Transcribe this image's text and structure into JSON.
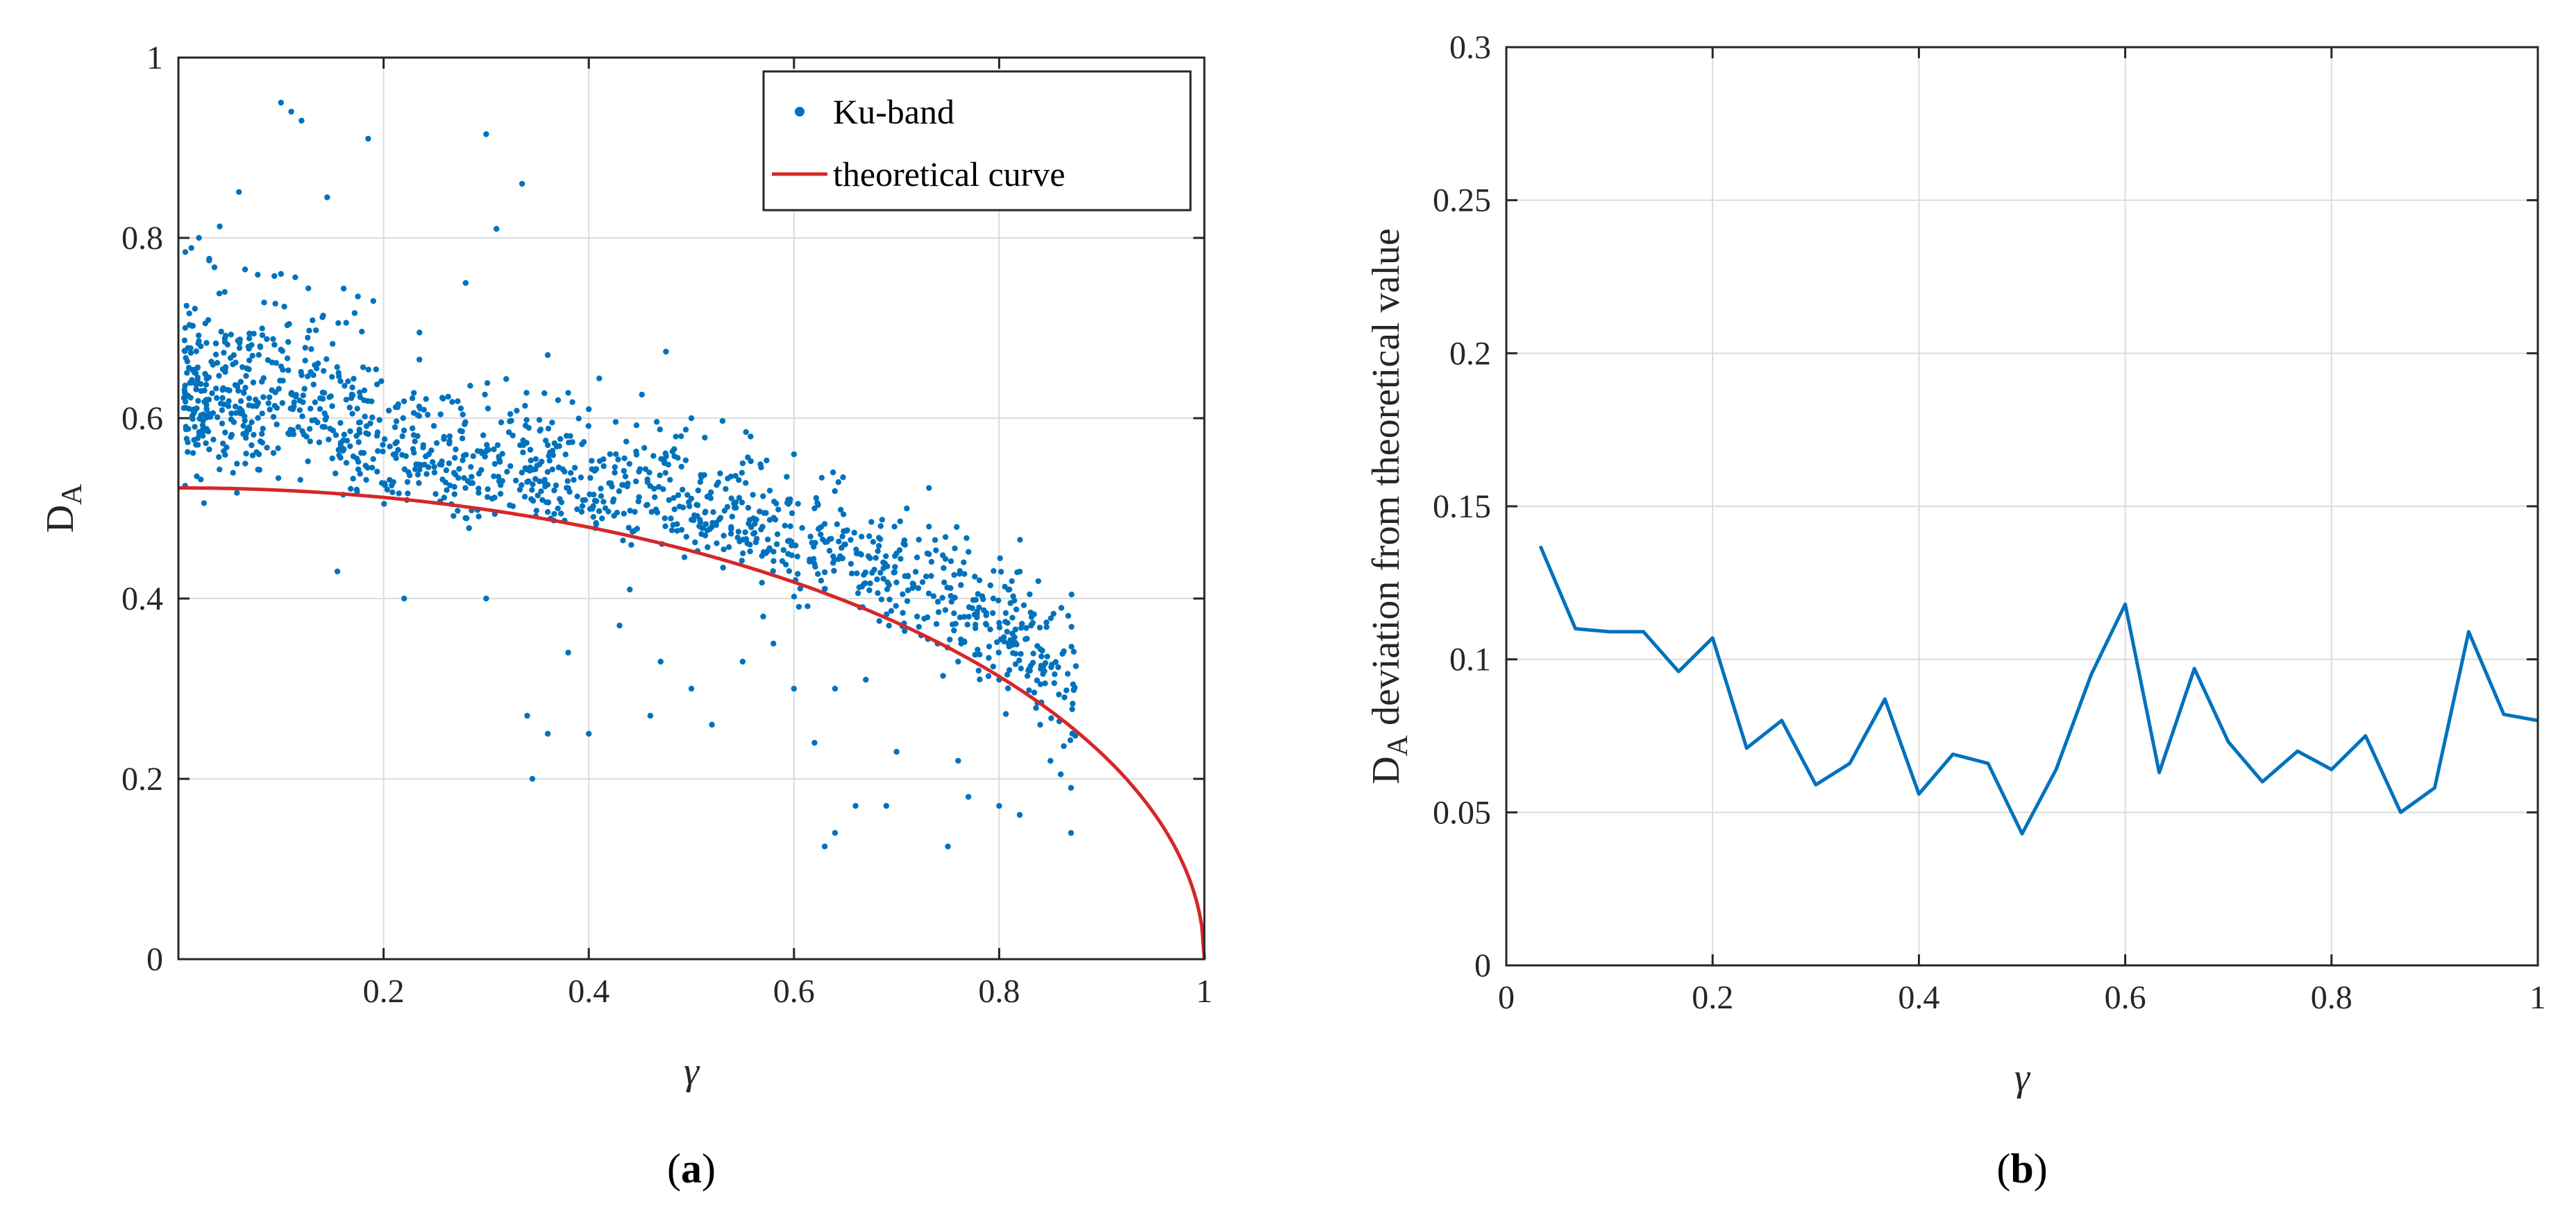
{
  "chart_data": [
    {
      "panel": "(a)",
      "type": "scatter",
      "xlabel": "γ",
      "ylabel": "D",
      "ylabel_sub": "A",
      "xlim": [
        0,
        1
      ],
      "ylim": [
        0,
        1
      ],
      "xticks": [
        0.2,
        0.4,
        0.6,
        0.8,
        1
      ],
      "xtick_labels": [
        "0.2",
        "0.4",
        "0.6",
        "0.8",
        "1"
      ],
      "yticks": [
        0,
        0.2,
        0.4,
        0.6,
        0.8,
        1
      ],
      "ytick_labels": [
        "0",
        "0.2",
        "0.4",
        "0.6",
        "0.8",
        "1"
      ],
      "grid": true,
      "legend_position": "top-right",
      "series": [
        {
          "name": "Ku-band",
          "kind": "scatter",
          "color": "#0072BD",
          "points": [
            [
              0.1,
              0.95
            ],
            [
              0.11,
              0.94
            ],
            [
              0.12,
              0.93
            ],
            [
              0.3,
              0.915
            ],
            [
              0.185,
              0.91
            ],
            [
              0.335,
              0.86
            ],
            [
              0.145,
              0.845
            ],
            [
              0.31,
              0.81
            ],
            [
              0.02,
              0.8
            ],
            [
              0.03,
              0.775
            ],
            [
              0.28,
              0.75
            ],
            [
              0.065,
              0.765
            ],
            [
              0.1,
              0.76
            ],
            [
              0.175,
              0.735
            ],
            [
              0.19,
              0.73
            ],
            [
              0.235,
              0.695
            ],
            [
              0.36,
              0.67
            ],
            [
              0.37,
              0.62
            ],
            [
              0.4,
              0.61
            ],
            [
              0.5,
              0.6
            ],
            [
              0.6,
              0.56
            ],
            [
              0.49,
              0.58
            ],
            [
              0.55,
              0.55
            ],
            [
              0.62,
              0.5
            ],
            [
              0.65,
              0.46
            ],
            [
              0.7,
              0.45
            ],
            [
              0.73,
              0.45
            ],
            [
              0.72,
              0.38
            ],
            [
              0.74,
              0.35
            ],
            [
              0.76,
              0.33
            ],
            [
              0.78,
              0.32
            ],
            [
              0.81,
              0.41
            ],
            [
              0.8,
              0.31
            ],
            [
              0.83,
              0.32
            ],
            [
              0.84,
              0.26
            ],
            [
              0.85,
              0.22
            ],
            [
              0.86,
              0.205
            ],
            [
              0.87,
              0.19
            ],
            [
              0.87,
              0.14
            ],
            [
              0.82,
              0.16
            ],
            [
              0.8,
              0.17
            ],
            [
              0.77,
              0.18
            ],
            [
              0.76,
              0.22
            ],
            [
              0.75,
              0.125
            ],
            [
              0.7,
              0.23
            ],
            [
              0.69,
              0.17
            ],
            [
              0.66,
              0.17
            ],
            [
              0.64,
              0.14
            ],
            [
              0.63,
              0.125
            ],
            [
              0.62,
              0.24
            ],
            [
              0.64,
              0.3
            ],
            [
              0.67,
              0.31
            ],
            [
              0.58,
              0.35
            ],
            [
              0.55,
              0.33
            ],
            [
              0.52,
              0.26
            ],
            [
              0.46,
              0.27
            ],
            [
              0.4,
              0.25
            ],
            [
              0.36,
              0.25
            ],
            [
              0.345,
              0.2
            ],
            [
              0.34,
              0.27
            ],
            [
              0.22,
              0.4
            ],
            [
              0.155,
              0.43
            ],
            [
              0.3,
              0.4
            ],
            [
              0.38,
              0.34
            ],
            [
              0.43,
              0.37
            ],
            [
              0.47,
              0.33
            ],
            [
              0.5,
              0.3
            ],
            [
              0.57,
              0.38
            ],
            [
              0.6,
              0.3
            ],
            [
              0.44,
              0.41
            ]
          ]
        },
        {
          "name": "theoretical curve",
          "kind": "line",
          "color": "#D62728",
          "function": "0.5227*sqrt(1-x^2)"
        }
      ]
    },
    {
      "panel": "(b)",
      "type": "line",
      "xlabel": "γ",
      "ylabel": "D",
      "ylabel_sub": "A",
      "ylabel_rest": "deviation from theoretical value",
      "xlim": [
        0,
        1
      ],
      "ylim": [
        0,
        0.3
      ],
      "xticks": [
        0,
        0.2,
        0.4,
        0.6,
        0.8,
        1
      ],
      "xtick_labels": [
        "0",
        "0.2",
        "0.4",
        "0.6",
        "0.8",
        "1"
      ],
      "yticks": [
        0,
        0.05,
        0.1,
        0.15,
        0.2,
        0.25,
        0.3
      ],
      "ytick_labels": [
        "0",
        "0.05",
        "0.1",
        "0.15",
        "0.2",
        "0.25",
        "0.3"
      ],
      "grid": true,
      "color": "#0072BD",
      "x": [
        0.033,
        0.067,
        0.1,
        0.133,
        0.167,
        0.2,
        0.233,
        0.267,
        0.3,
        0.333,
        0.367,
        0.4,
        0.433,
        0.467,
        0.5,
        0.533,
        0.567,
        0.6,
        0.633,
        0.667,
        0.7,
        0.733,
        0.767,
        0.8,
        0.833,
        0.867,
        0.9,
        0.933,
        0.967,
        1.0
      ],
      "y": [
        0.137,
        0.11,
        0.109,
        0.109,
        0.096,
        0.107,
        0.071,
        0.08,
        0.059,
        0.066,
        0.087,
        0.056,
        0.069,
        0.066,
        0.043,
        0.064,
        0.095,
        0.118,
        0.063,
        0.097,
        0.073,
        0.06,
        0.07,
        0.064,
        0.075,
        0.05,
        0.058,
        0.109,
        0.082,
        0.08
      ]
    }
  ]
}
